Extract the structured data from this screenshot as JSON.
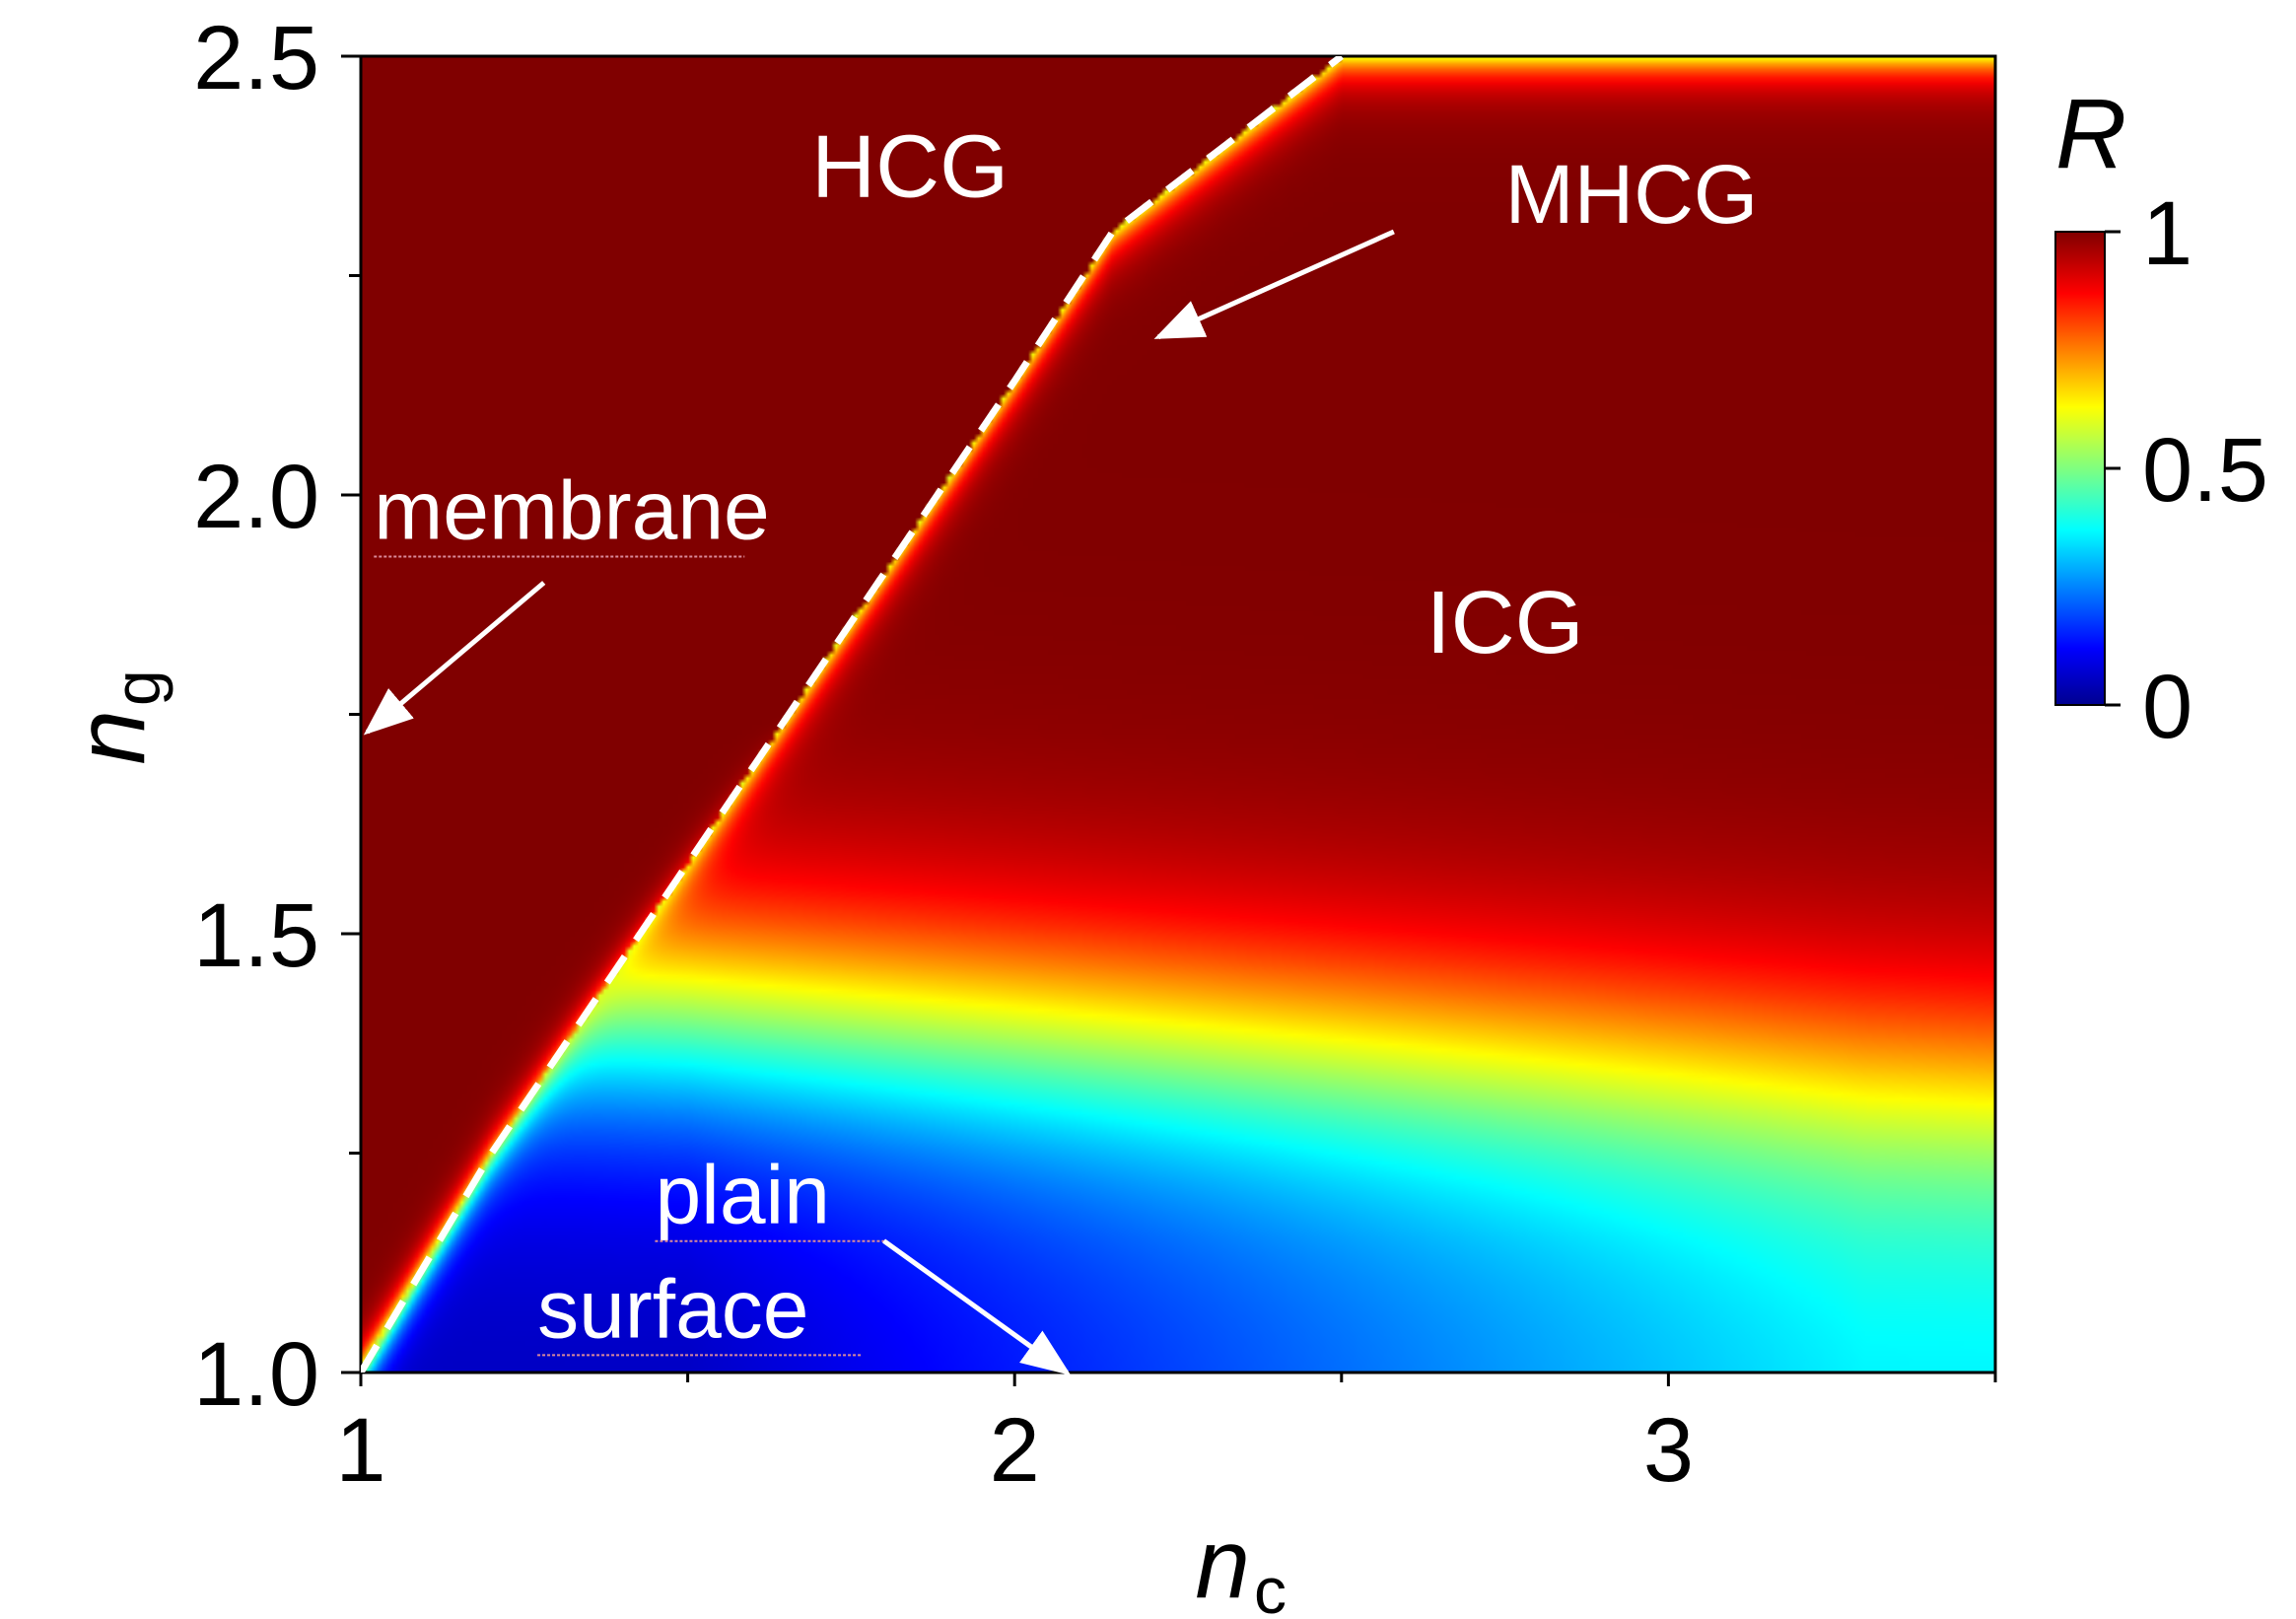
{
  "chart_data": {
    "type": "heatmap",
    "xlabel": {
      "main": "n",
      "subscript": "c"
    },
    "ylabel": {
      "main": "n",
      "subscript": "g"
    },
    "xlim": [
      1,
      3.5
    ],
    "ylim": [
      1.0,
      2.5
    ],
    "x_ticks": [
      {
        "value": 1,
        "label": "1"
      },
      {
        "value": 2,
        "label": "2"
      },
      {
        "value": 3,
        "label": "3"
      }
    ],
    "x_minor_ticks": [
      1.5,
      2.5,
      3.5
    ],
    "y_ticks": [
      {
        "value": 1.0,
        "label": "1.0"
      },
      {
        "value": 1.5,
        "label": "1.5"
      },
      {
        "value": 2.0,
        "label": "2.0"
      },
      {
        "value": 2.5,
        "label": "2.5"
      }
    ],
    "y_minor_ticks": [
      1.25,
      1.75,
      2.25
    ],
    "colorbar": {
      "title": "R",
      "range": [
        0,
        1
      ],
      "ticks": [
        {
          "value": 0,
          "label": "0"
        },
        {
          "value": 0.5,
          "label": "0.5"
        },
        {
          "value": 1,
          "label": "1"
        }
      ],
      "colormap": "jet"
    },
    "boundary_line": {
      "style": "dashed",
      "color": "#ffffff",
      "points": [
        [
          1.0,
          1.0
        ],
        [
          1.2,
          1.25
        ],
        [
          1.5,
          1.58
        ],
        [
          2.0,
          2.13
        ],
        [
          2.15,
          2.3
        ],
        [
          2.5,
          2.5
        ]
      ]
    },
    "regions": [
      {
        "label": "HCG",
        "x": 1.84,
        "y": 2.34
      },
      {
        "label": "ICG",
        "x": 2.75,
        "y": 1.82
      }
    ],
    "annotations": [
      {
        "label": "MHCG",
        "text_at": [
          2.75,
          2.31
        ],
        "arrow_from": [
          2.58,
          2.3
        ],
        "arrow_to": [
          2.22,
          2.18
        ]
      },
      {
        "label": "membrane",
        "text_at": [
          1.02,
          1.95
        ],
        "arrow_from": [
          1.28,
          1.9
        ],
        "arrow_to": [
          1.01,
          1.73
        ]
      },
      {
        "label": "plain",
        "text_at": [
          1.45,
          1.17
        ],
        "arrow_from": [
          1.8,
          1.15
        ],
        "arrow_to": [
          2.08,
          1.0
        ]
      },
      {
        "label": "surface",
        "text_at": [
          1.27,
          1.04
        ]
      }
    ]
  }
}
